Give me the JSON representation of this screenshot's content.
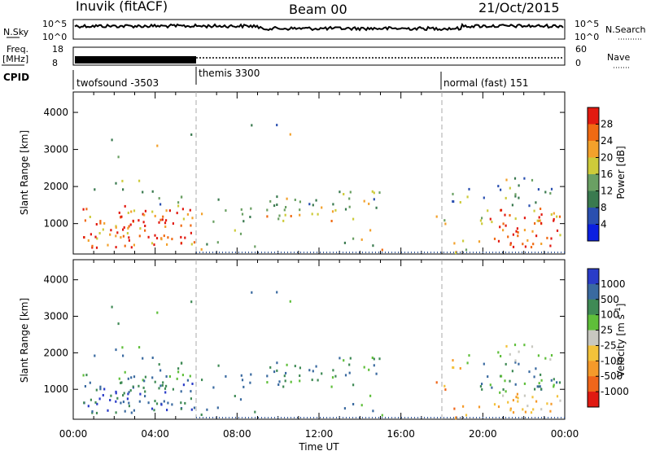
{
  "header": {
    "radar": "Inuvik (fitACF)",
    "beam": "Beam 00",
    "date": "21/Oct/2015"
  },
  "strips": {
    "nsky_label": "N.Sky",
    "nsky_ticks": [
      "10^5",
      "10^0"
    ],
    "nsearch_label": "N.Search",
    "nsearch_ticks": [
      "10^5",
      "10^0"
    ],
    "freq_label": "Freq.",
    "freq_unit": "[MHz]",
    "freq_ticks": [
      "18",
      "8"
    ],
    "nave_label": "Nave",
    "nave_ticks": [
      "60",
      "0"
    ],
    "cpid_label": "CPID",
    "cpid_modes": [
      {
        "name": "twofsound -3503",
        "start_hour": 0
      },
      {
        "name": "themis 3300",
        "start_hour": 6
      },
      {
        "name": "normal (fast) 151",
        "start_hour": 18
      }
    ]
  },
  "chart_data": [
    {
      "type": "heatmap",
      "name": "power",
      "ylabel": "Slant Range [km]",
      "xlabel": "Time UT",
      "xlim_hours": [
        0,
        24
      ],
      "ylim": [
        180,
        4550
      ],
      "x_tick_labels": [
        "00:00",
        "04:00",
        "08:00",
        "12:00",
        "16:00",
        "20:00",
        "00:00"
      ],
      "y_ticks": [
        1000,
        2000,
        3000,
        4000
      ],
      "colorbar": {
        "label": "Power [dB]",
        "ticks": [
          "4",
          "8",
          "12",
          "16",
          "20",
          "24",
          "28"
        ],
        "colors": [
          "#0b1fe0",
          "#2a4fb0",
          "#3a7a4f",
          "#6aa063",
          "#cdcb3a",
          "#f3a12b",
          "#f06a12",
          "#e21a10"
        ]
      },
      "mode_boundaries_hours": [
        6,
        18
      ]
    },
    {
      "type": "heatmap",
      "name": "velocity",
      "ylabel": "Slant Range [km]",
      "xlabel": "Time UT",
      "xlim_hours": [
        0,
        24
      ],
      "ylim": [
        180,
        4550
      ],
      "x_tick_labels": [
        "00:00",
        "04:00",
        "08:00",
        "12:00",
        "16:00",
        "20:00",
        "00:00"
      ],
      "y_ticks": [
        1000,
        2000,
        3000,
        4000
      ],
      "colorbar": {
        "label": "Velocity [m s-1]",
        "ticks": [
          "1000",
          "500",
          "100",
          "25",
          "-25",
          "-100",
          "-500",
          "-1000"
        ],
        "colors": [
          "#2a3cc8",
          "#3a6aa0",
          "#3f8a55",
          "#5fbf3a",
          "#c8c8c0",
          "#f3c23a",
          "#f59a2a",
          "#f0661a",
          "#e01a12"
        ]
      },
      "mode_boundaries_hours": [
        6,
        18
      ]
    }
  ],
  "axis_title": "Time UT",
  "power_ylabel": "Slant Range [km]",
  "power_cbar_label": "Power [dB]",
  "vel_ylabel": "Slant Range [km]",
  "vel_cbar_label": "Velocity [m s",
  "vel_cbar_sup": "-1",
  "vel_cbar_close": "]"
}
